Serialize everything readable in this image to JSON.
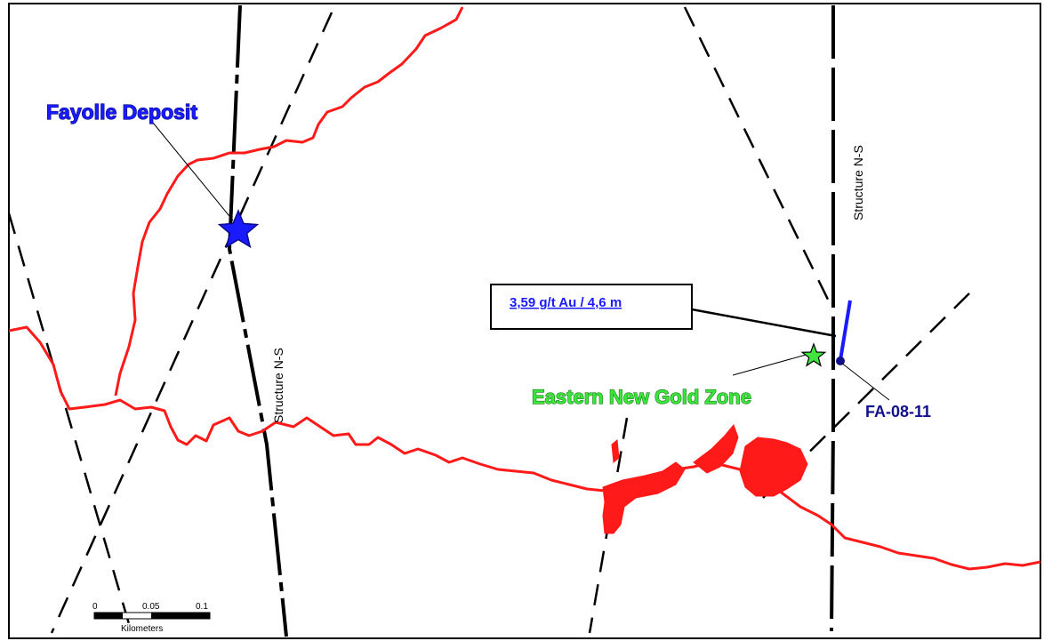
{
  "labels": {
    "deposit": "Fayolle Deposit",
    "zone": "Eastern New Gold Zone",
    "drill_hole": "FA-08-11",
    "structure_west": "Structure N-S",
    "structure_east": "Structure N-S",
    "assay": "3,59 g/t Au / 4,6 m"
  },
  "scale_bar": {
    "ticks": [
      "0",
      "0.05",
      "0.1"
    ],
    "unit": "Kilometers"
  },
  "colors": {
    "shoreline": "#ff1a1a",
    "faults": "#000000",
    "deposit_star": "#1a1aff",
    "zone_star": "#3ee63e",
    "drill_trace": "#1a1aff"
  },
  "icons": {
    "deposit_marker": "star-icon",
    "zone_marker": "star-icon",
    "collar_marker": "dot-icon"
  }
}
